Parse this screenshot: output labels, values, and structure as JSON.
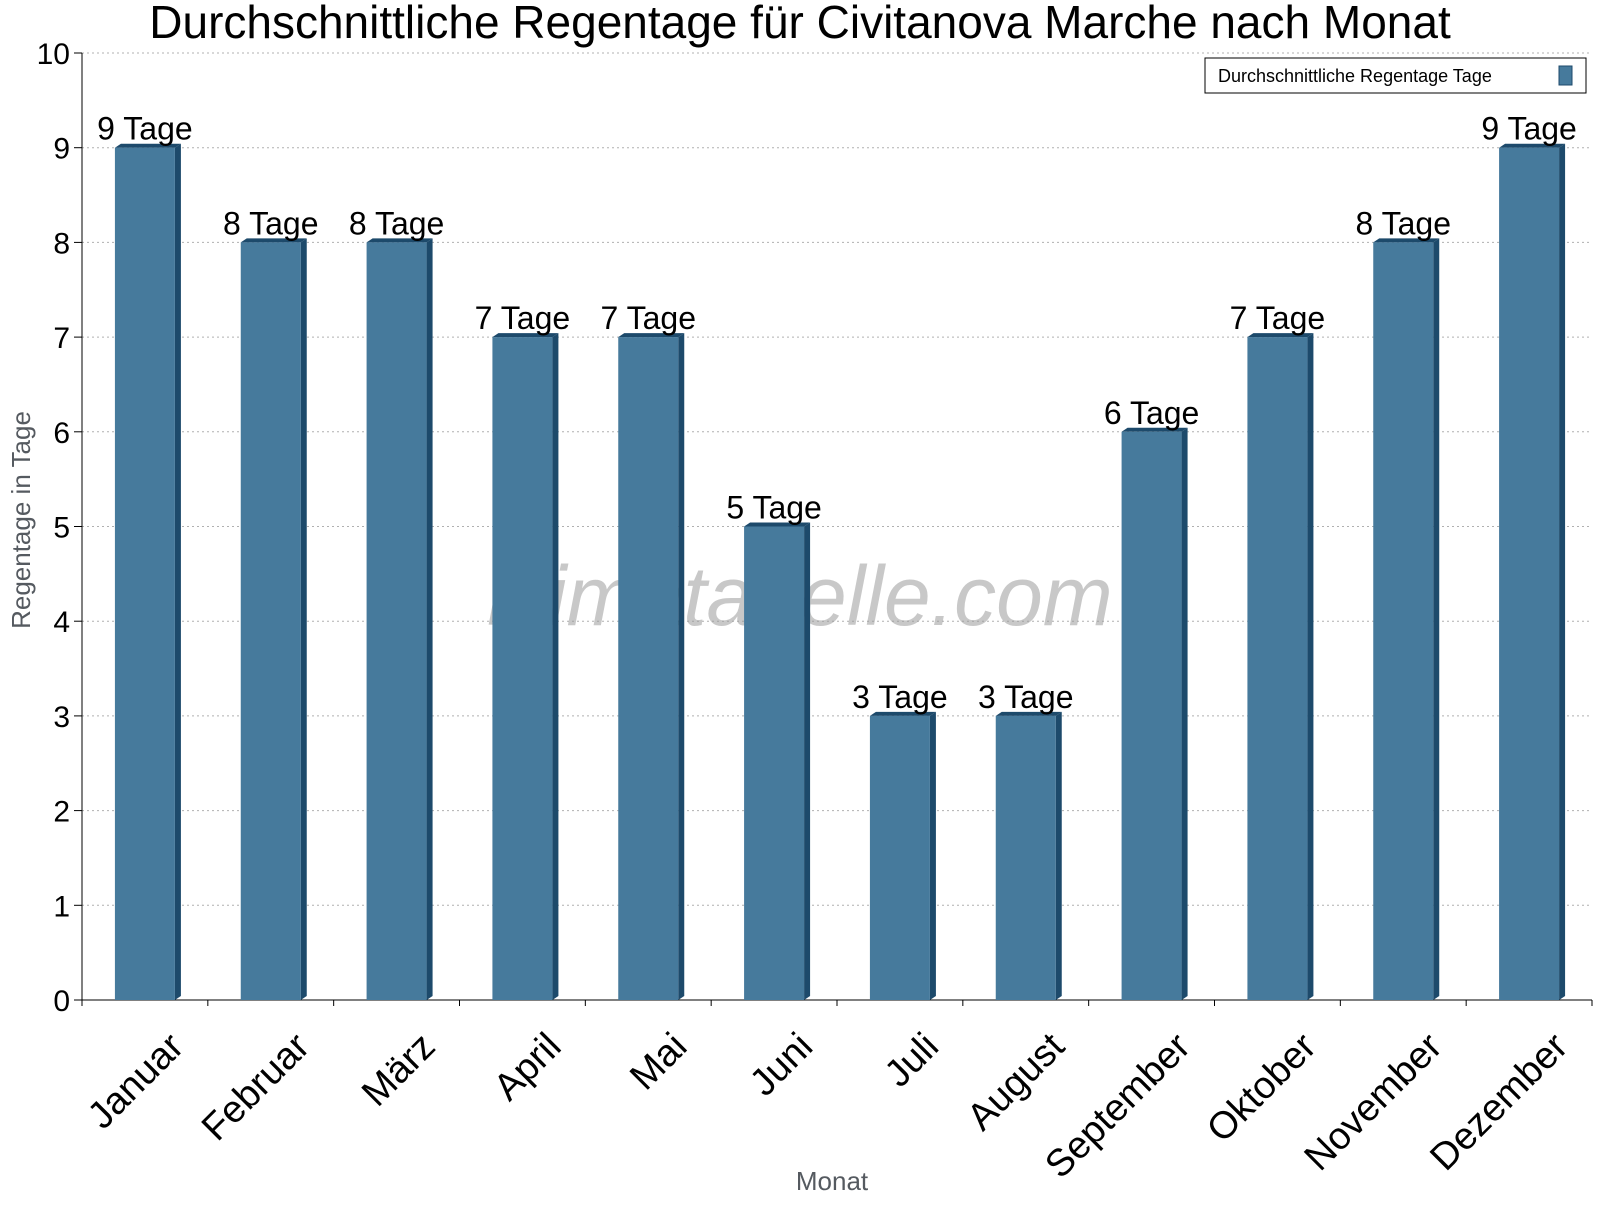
{
  "chart_data": {
    "type": "bar",
    "title": "Durchschnittliche Regentage für Civitanova Marche nach Monat",
    "xlabel": "Monat",
    "ylabel": "Regentage in Tage",
    "categories": [
      "Januar",
      "Februar",
      "März",
      "April",
      "Mai",
      "Juni",
      "Juli",
      "August",
      "September",
      "Oktober",
      "November",
      "Dezember"
    ],
    "series": [
      {
        "name": "Durchschnittliche Regentage Tage",
        "values": [
          9,
          8,
          8,
          7,
          7,
          5,
          3,
          3,
          6,
          7,
          8,
          9
        ],
        "data_labels": [
          "9 Tage",
          "8 Tage",
          "8 Tage",
          "7 Tage",
          "7 Tage",
          "5 Tage",
          "3 Tage",
          "3 Tage",
          "6 Tage",
          "7 Tage",
          "8 Tage",
          "9 Tage"
        ]
      }
    ],
    "ylim": [
      0,
      10
    ],
    "yticks": [
      0,
      1,
      2,
      3,
      4,
      5,
      6,
      7,
      8,
      9,
      10
    ],
    "grid": "horizontal dotted",
    "legend": "top-right",
    "bar_color": "#467a9c",
    "bar_side_color": "#1d4a6b",
    "watermark": "klimatabelle.com"
  }
}
